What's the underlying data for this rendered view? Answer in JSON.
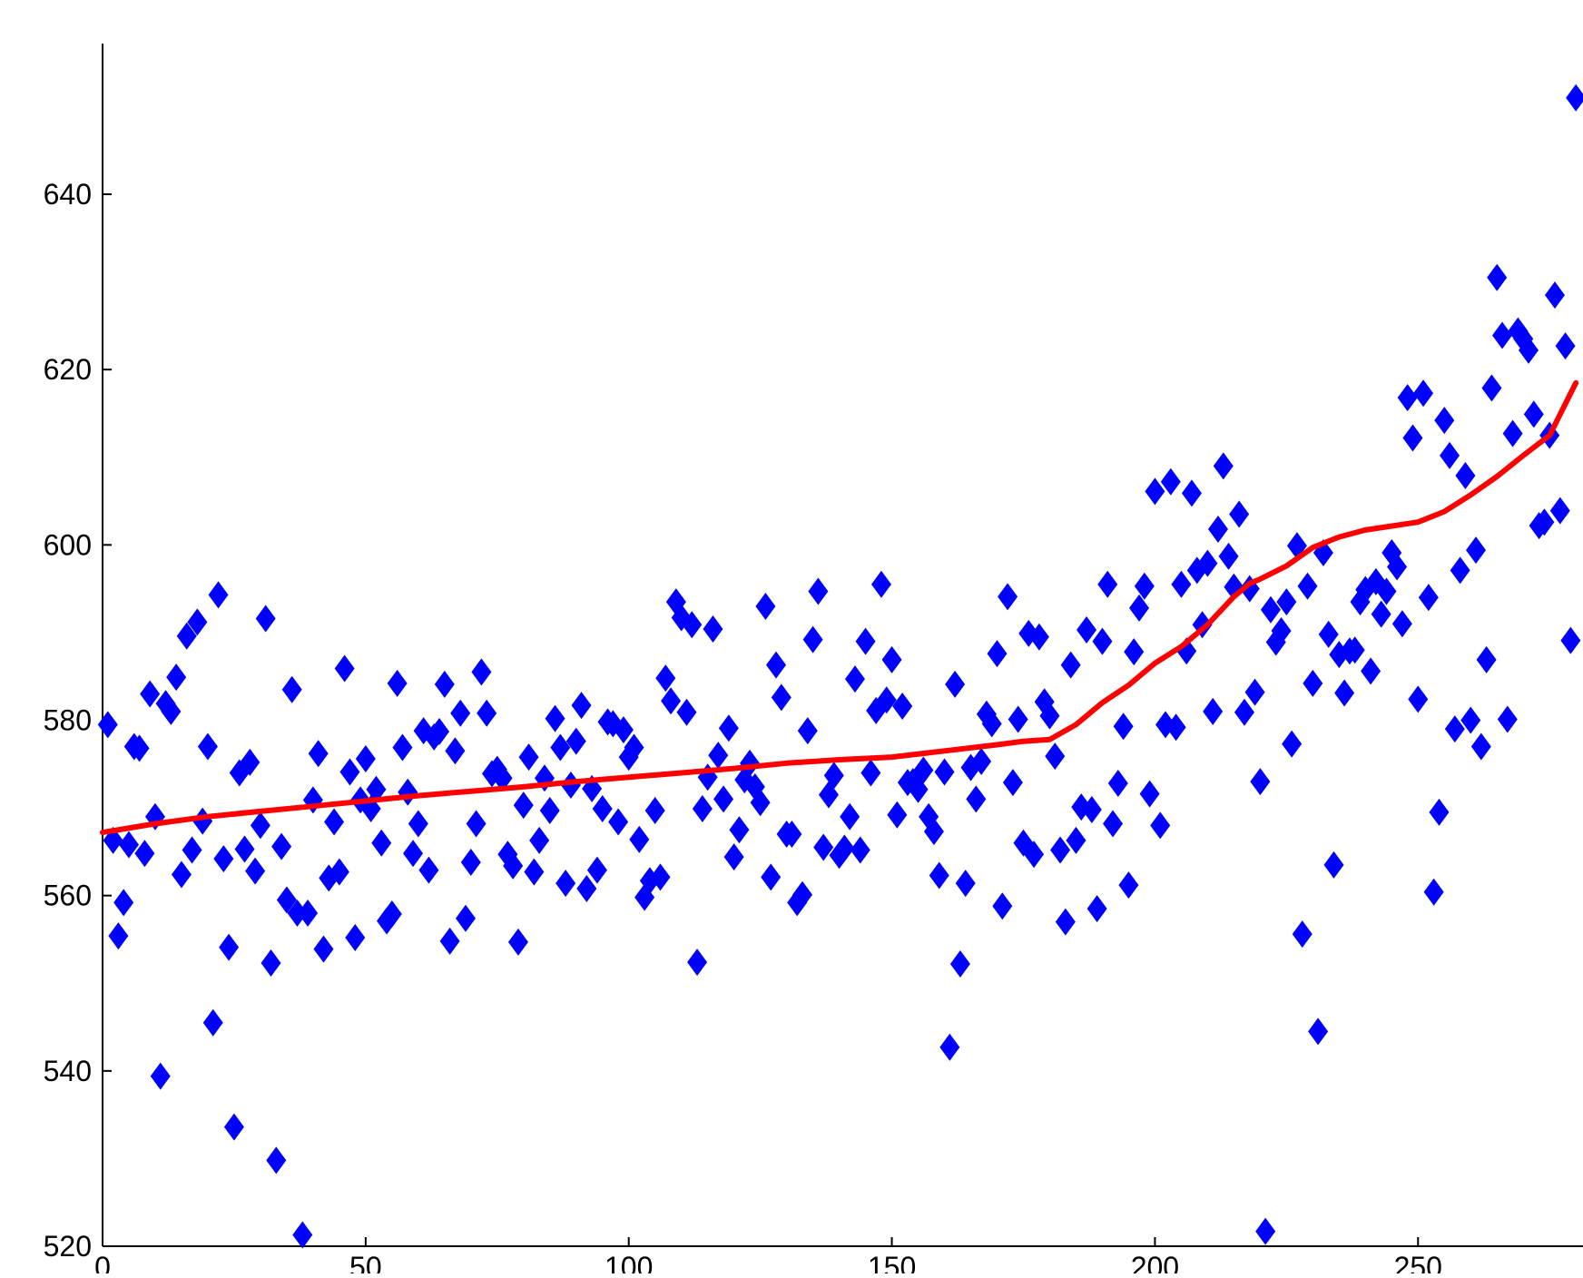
{
  "chart_data": {
    "type": "scatter",
    "title": "",
    "xlabel": "",
    "ylabel": "",
    "xlim": [
      0,
      280
    ],
    "ylim": [
      520,
      655
    ],
    "xticks": [
      0,
      50,
      100,
      150,
      200,
      250
    ],
    "yticks": [
      520,
      540,
      560,
      580,
      600,
      620,
      640
    ],
    "grid": false,
    "legend": "none",
    "colors": {
      "points": "#0000ff",
      "line": "#ff0000",
      "axis": "#000000"
    },
    "series": [
      {
        "kind": "scatter",
        "marker": "diamond",
        "x": [
          1,
          2,
          3,
          4,
          5,
          6,
          7,
          8,
          9,
          10,
          11,
          12,
          13,
          14,
          15,
          16,
          17,
          18,
          19,
          20,
          21,
          22,
          23,
          24,
          25,
          26,
          27,
          28,
          29,
          30,
          31,
          32,
          33,
          34,
          35,
          36,
          37,
          38,
          39,
          40,
          41,
          42,
          43,
          44,
          45,
          46,
          47,
          48,
          49,
          50,
          51,
          52,
          53,
          54,
          55,
          56,
          57,
          58,
          59,
          60,
          61,
          62,
          63,
          64,
          65,
          66,
          67,
          68,
          69,
          70,
          71,
          72,
          73,
          74,
          75,
          76,
          77,
          78,
          79,
          80,
          81,
          82,
          83,
          84,
          85,
          86,
          87,
          88,
          89,
          90,
          91,
          92,
          93,
          94,
          95,
          96,
          97,
          98,
          99,
          100,
          101,
          102,
          103,
          104,
          105,
          106,
          107,
          108,
          109,
          110,
          111,
          112,
          113,
          114,
          115,
          116,
          117,
          118,
          119,
          120,
          121,
          122,
          123,
          124,
          125,
          126,
          127,
          128,
          129,
          130,
          131,
          132,
          133,
          134,
          135,
          136,
          137,
          138,
          139,
          140,
          141,
          142,
          143,
          144,
          145,
          146,
          147,
          148,
          149,
          150,
          151,
          152,
          153,
          154,
          155,
          156,
          157,
          158,
          159,
          160,
          161,
          162,
          163,
          164,
          165,
          166,
          167,
          168,
          169,
          170,
          171,
          172,
          173,
          174,
          175,
          176,
          177,
          178,
          179,
          180,
          181,
          182,
          183,
          184,
          185,
          186,
          187,
          188,
          189,
          190,
          191,
          192,
          193,
          194,
          195,
          196,
          197,
          198,
          199,
          200,
          201,
          202,
          203,
          204,
          205,
          206,
          207,
          208,
          209,
          210,
          211,
          212,
          213,
          214,
          215,
          216,
          217,
          218,
          219,
          220,
          221,
          222,
          223,
          224,
          225,
          226,
          227,
          228,
          229,
          230,
          231,
          232,
          233,
          234,
          235,
          236,
          237,
          238,
          239,
          240,
          241,
          242,
          243,
          244,
          245,
          246,
          247,
          248,
          249,
          250,
          251,
          252,
          253,
          254,
          255,
          256,
          257,
          258,
          259,
          260,
          261,
          262,
          263,
          264,
          265,
          266,
          267,
          268,
          269,
          270,
          271,
          272,
          273,
          274,
          275,
          276,
          277,
          278,
          279,
          280
        ],
        "y": [
          579.5,
          566.3,
          555.4,
          559.2,
          565.8,
          577,
          576.8,
          564.8,
          583,
          569,
          539.4,
          581.9,
          581,
          584.9,
          562.4,
          589.6,
          565.2,
          591.2,
          568.5,
          577,
          545.5,
          594.3,
          564.2,
          554.1,
          533.6,
          574,
          565.3,
          575.2,
          562.8,
          568,
          591.6,
          552.3,
          529.8,
          565.6,
          559.5,
          583.5,
          558,
          521.3,
          558,
          570.9,
          576.2,
          553.9,
          562,
          568.4,
          562.7,
          585.9,
          574.1,
          555.2,
          570.9,
          575.6,
          569.9,
          572.1,
          566,
          557.1,
          557.9,
          584.2,
          576.9,
          571.8,
          564.8,
          568.2,
          578.8,
          562.9,
          578.1,
          578.7,
          584.1,
          554.8,
          576.5,
          580.8,
          557.4,
          563.8,
          568.2,
          585.5,
          580.8,
          573.9,
          574.4,
          573.4,
          564.7,
          563.4,
          554.7,
          570.3,
          575.8,
          562.7,
          566.3,
          573.4,
          569.7,
          580.2,
          576.9,
          561.4,
          572.6,
          577.6,
          581.7,
          560.8,
          572.2,
          562.9,
          569.9,
          579.8,
          579.6,
          568.4,
          578.9,
          575.8,
          576.9,
          566.4,
          559.8,
          561.7,
          569.7,
          562.1,
          584.8,
          582.2,
          593.5,
          591.7,
          580.9,
          590.9,
          552.4,
          569.9,
          573.5,
          590.4,
          576,
          571,
          579.1,
          564.4,
          567.5,
          573.2,
          575.1,
          572.4,
          570.6,
          593,
          562.1,
          586.3,
          582.6,
          567,
          567,
          559.2,
          560.1,
          578.8,
          589.2,
          594.7,
          565.5,
          571.5,
          573.7,
          564.6,
          565.4,
          569,
          584.7,
          565.2,
          589,
          574,
          581.1,
          595.5,
          582.3,
          586.9,
          569.2,
          581.6,
          572.9,
          573,
          572.1,
          574.3,
          569,
          567.3,
          562.3,
          574.1,
          542.7,
          584.1,
          552.2,
          561.4,
          574.6,
          571,
          575.3,
          580.7,
          579.6,
          587.6,
          558.8,
          594.1,
          572.9,
          580.1,
          566,
          589.9,
          564.7,
          589.5,
          582.1,
          580.5,
          575.9,
          565.2,
          557,
          586.3,
          566.3,
          570.1,
          590.3,
          569.8,
          558.5,
          589,
          595.5,
          568.2,
          572.8,
          579.3,
          561.2,
          587.8,
          592.8,
          595.3,
          571.6,
          606.1,
          568,
          579.5,
          607.2,
          579.2,
          595.5,
          587.9,
          605.9,
          597.1,
          590.9,
          597.9,
          581,
          601.8,
          609,
          598.7,
          595.2,
          603.5,
          580.9,
          595,
          583.2,
          573,
          521.7,
          592.6,
          588.9,
          590.2,
          593.5,
          577.3,
          599.9,
          555.6,
          595.3,
          584.2,
          544.5,
          599.1,
          589.8,
          563.5,
          587.5,
          583.1,
          587.9,
          588,
          593.5,
          594.9,
          585.6,
          595.8,
          592.1,
          594.7,
          599.1,
          597.5,
          591,
          616.8,
          612.2,
          582.4,
          617.3,
          594,
          560.4,
          569.5,
          614.2,
          610.2,
          579,
          597.1,
          607.9,
          580,
          599.4,
          577,
          586.9,
          617.9,
          630.5,
          623.9,
          580.1,
          612.7,
          624.4,
          623.5,
          622.2,
          614.9,
          602.2,
          602.6,
          612.5,
          628.5,
          603.9,
          622.7,
          589.1,
          651
        ]
      },
      {
        "kind": "line",
        "x": [
          0,
          10,
          20,
          30,
          40,
          50,
          60,
          70,
          80,
          90,
          100,
          110,
          120,
          130,
          140,
          150,
          160,
          170,
          175,
          180,
          185,
          190,
          195,
          200,
          205,
          210,
          215,
          218,
          220,
          225,
          230,
          235,
          240,
          250,
          255,
          260,
          265,
          270,
          275,
          280
        ],
        "y": [
          567.2,
          568.2,
          569,
          569.6,
          570.2,
          570.8,
          571.4,
          571.9,
          572.4,
          573,
          573.5,
          574,
          574.5,
          575.1,
          575.5,
          575.8,
          576.5,
          577.2,
          577.6,
          577.8,
          579.5,
          582,
          584,
          586.5,
          588.4,
          590.9,
          594.1,
          595.6,
          596.1,
          597.6,
          599.7,
          600.9,
          601.7,
          602.6,
          603.8,
          605.7,
          607.8,
          610.2,
          612.5,
          618.5
        ]
      }
    ]
  }
}
